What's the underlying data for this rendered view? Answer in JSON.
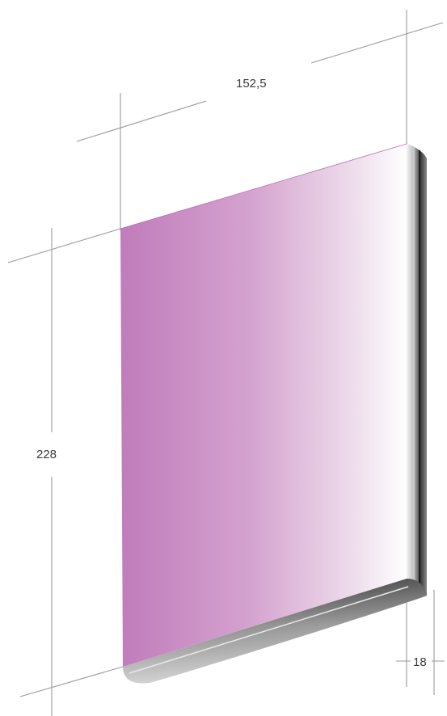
{
  "dimensions": {
    "width_label": "152,5",
    "height_label": "228",
    "depth_label": "18"
  },
  "colors": {
    "panel_front_left": "#c07cbb",
    "panel_front_right": "#ffffff",
    "edge_dark": "#2e2e2e",
    "edge_light": "#f2f2f2",
    "dimension_lines": "#9a9a9a"
  }
}
